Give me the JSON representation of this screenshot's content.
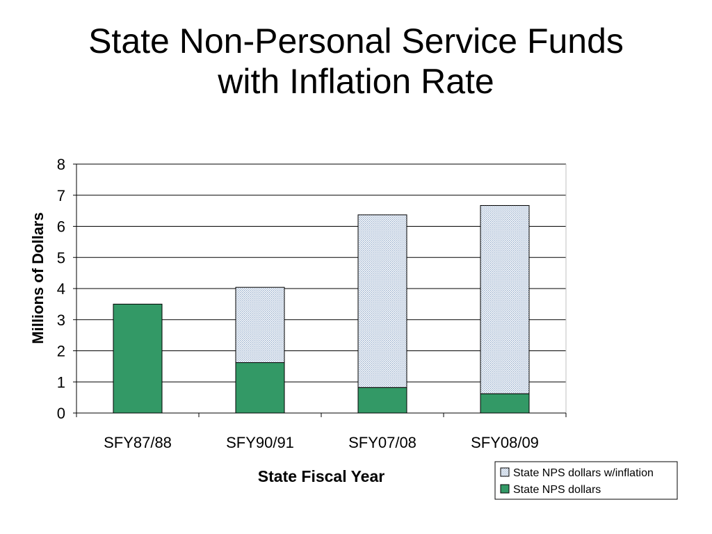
{
  "slide": {
    "title_line1": "State Non-Personal Service Funds",
    "title_line2": "with Inflation Rate"
  },
  "colors": {
    "nps_dollars": "#339966",
    "nps_inflation_pattern_dot": "#8fa8c8",
    "nps_inflation_fill": "#ffffff",
    "gridline": "#000000",
    "bar_edge": "#000000"
  },
  "chart_data": {
    "type": "bar",
    "stacked": true,
    "categories": [
      "SFY87/88",
      "SFY90/91",
      "SFY07/08",
      "SFY08/09"
    ],
    "series": [
      {
        "name": "State NPS dollars",
        "values": [
          3.5,
          1.62,
          0.82,
          0.62
        ],
        "pattern": "solid-green"
      },
      {
        "name": "State NPS dollars w/inflation",
        "values": [
          0,
          2.42,
          5.55,
          6.05
        ],
        "pattern": "dotted"
      }
    ],
    "xlabel": "State Fiscal Year",
    "ylabel": "Millions of Dollars",
    "ylim": [
      0,
      8
    ],
    "yticks": [
      0,
      1,
      2,
      3,
      4,
      5,
      6,
      7,
      8
    ],
    "grid": true,
    "legend": {
      "position": "bottom-right",
      "entries": [
        "State NPS dollars w/inflation",
        "State NPS dollars"
      ]
    }
  }
}
